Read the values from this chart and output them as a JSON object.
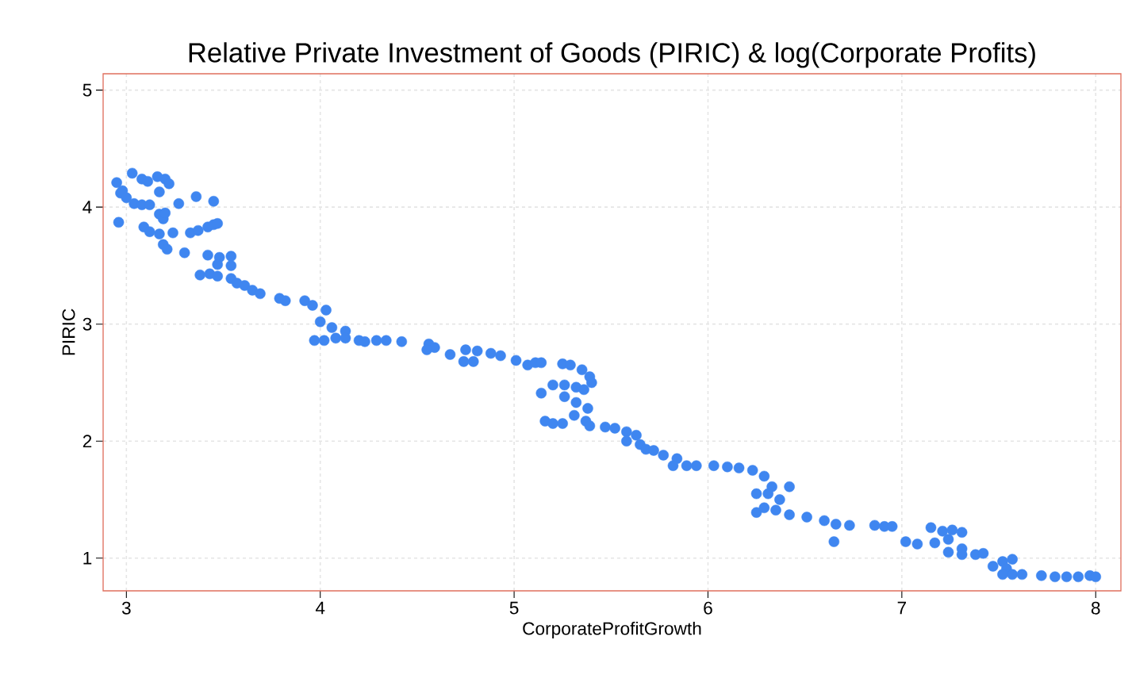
{
  "chart_data": {
    "type": "scatter",
    "title": "Relative Private Investment of Goods (PIRIC) & log(Corporate Profits)",
    "xlabel": "CorporateProfitGrowth",
    "ylabel": "PIRIC",
    "x": [
      2.95,
      2.98,
      2.97,
      3.0,
      3.03,
      3.08,
      3.11,
      3.16,
      3.2,
      3.22,
      3.17,
      3.04,
      3.08,
      3.12,
      2.96,
      3.09,
      3.12,
      3.17,
      3.19,
      3.2,
      3.27,
      3.36,
      3.45,
      3.17,
      3.24,
      3.19,
      3.21,
      3.3,
      3.33,
      3.37,
      3.42,
      3.45,
      3.47,
      3.42,
      3.48,
      3.54,
      3.54,
      3.47,
      3.38,
      3.43,
      3.47,
      3.54,
      3.57,
      3.61,
      3.65,
      3.69,
      3.79,
      3.82,
      3.92,
      3.96,
      4.03,
      4.0,
      4.06,
      4.13,
      3.97,
      4.02,
      4.08,
      4.13,
      4.2,
      4.23,
      4.29,
      4.34,
      4.42,
      4.56,
      4.59,
      4.55,
      4.67,
      4.75,
      4.74,
      4.79,
      4.81,
      4.88,
      4.93,
      5.01,
      5.07,
      5.11,
      5.14,
      5.25,
      5.29,
      5.35,
      5.39,
      5.4,
      5.14,
      5.2,
      5.26,
      5.32,
      5.36,
      5.26,
      5.32,
      5.38,
      5.31,
      5.37,
      5.16,
      5.2,
      5.25,
      5.39,
      5.47,
      5.52,
      5.58,
      5.63,
      5.58,
      5.65,
      5.68,
      5.72,
      5.77,
      5.84,
      5.82,
      5.89,
      5.94,
      6.03,
      6.1,
      6.16,
      6.23,
      6.29,
      6.42,
      6.33,
      6.25,
      6.31,
      6.37,
      6.25,
      6.29,
      6.35,
      6.42,
      6.51,
      6.6,
      6.66,
      6.73,
      6.65,
      6.86,
      6.91,
      6.95,
      7.02,
      7.08,
      7.15,
      7.21,
      7.26,
      7.31,
      7.17,
      7.24,
      7.24,
      7.31,
      7.31,
      7.38,
      7.42,
      7.47,
      7.52,
      7.57,
      7.54,
      7.52,
      7.57,
      7.62,
      7.72,
      7.79,
      7.85,
      7.91,
      7.97,
      8.0
    ],
    "values": [
      4.21,
      4.14,
      4.12,
      4.08,
      4.29,
      4.24,
      4.22,
      4.26,
      4.24,
      4.2,
      4.13,
      4.03,
      4.02,
      4.02,
      3.87,
      3.83,
      3.79,
      3.94,
      3.9,
      3.95,
      4.03,
      4.09,
      4.05,
      3.77,
      3.78,
      3.68,
      3.64,
      3.61,
      3.78,
      3.8,
      3.83,
      3.85,
      3.86,
      3.59,
      3.57,
      3.58,
      3.5,
      3.51,
      3.42,
      3.43,
      3.41,
      3.39,
      3.35,
      3.33,
      3.29,
      3.26,
      3.22,
      3.2,
      3.2,
      3.16,
      3.12,
      3.02,
      2.97,
      2.94,
      2.86,
      2.86,
      2.88,
      2.88,
      2.86,
      2.85,
      2.86,
      2.86,
      2.85,
      2.83,
      2.8,
      2.78,
      2.74,
      2.78,
      2.68,
      2.68,
      2.77,
      2.75,
      2.73,
      2.69,
      2.65,
      2.67,
      2.67,
      2.66,
      2.65,
      2.61,
      2.55,
      2.5,
      2.41,
      2.48,
      2.48,
      2.46,
      2.44,
      2.38,
      2.33,
      2.28,
      2.22,
      2.17,
      2.17,
      2.15,
      2.15,
      2.13,
      2.12,
      2.11,
      2.08,
      2.05,
      2.0,
      1.97,
      1.93,
      1.92,
      1.88,
      1.85,
      1.79,
      1.79,
      1.79,
      1.79,
      1.78,
      1.77,
      1.75,
      1.7,
      1.61,
      1.61,
      1.55,
      1.55,
      1.5,
      1.39,
      1.43,
      1.41,
      1.37,
      1.35,
      1.32,
      1.29,
      1.28,
      1.14,
      1.28,
      1.27,
      1.27,
      1.14,
      1.12,
      1.26,
      1.23,
      1.24,
      1.22,
      1.13,
      1.16,
      1.05,
      1.08,
      1.03,
      1.03,
      1.04,
      0.93,
      0.97,
      0.99,
      0.91,
      0.86,
      0.86,
      0.86,
      0.85,
      0.84,
      0.84,
      0.84,
      0.85,
      0.84
    ],
    "color": "#3f86f0",
    "grid": true,
    "xlim": [
      2.88,
      8.13
    ],
    "ylim": [
      0.72,
      5.14
    ],
    "xticks": [
      3,
      4,
      5,
      6,
      7,
      8
    ],
    "yticks": [
      1,
      2,
      3,
      4,
      5
    ]
  }
}
